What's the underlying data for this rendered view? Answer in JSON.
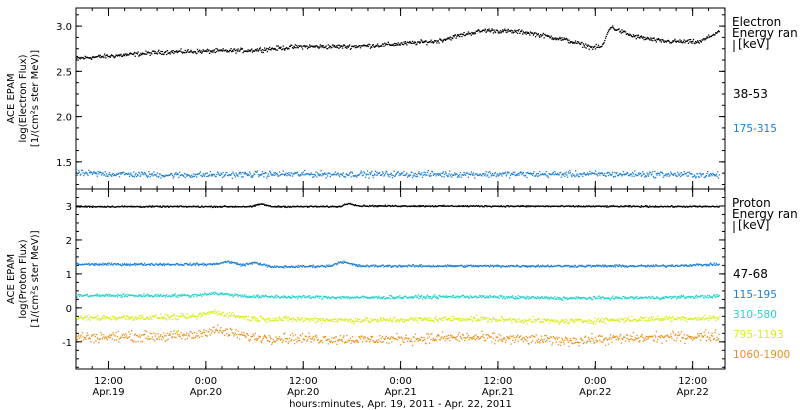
{
  "chart_data": [
    {
      "type": "scatter",
      "panel": "electron",
      "ylabel": [
        "ACE EPAM",
        "log(Electron Flux)",
        "[1/(cm²s ster MeV)]"
      ],
      "ylim": [
        1.2,
        3.2
      ],
      "yticks": [
        1.5,
        2.0,
        2.5,
        3.0
      ],
      "ytick_labels": [
        "1.5",
        "2.0",
        "2.5",
        "3.0"
      ],
      "legend_title": [
        "Electron",
        "Energy ran",
        "[keV]"
      ],
      "series": [
        {
          "name": "38-53",
          "color": "#000000",
          "noise": 0.035,
          "profile": [
            [
              0,
              2.65
            ],
            [
              0.2,
              2.68
            ],
            [
              0.45,
              2.72
            ],
            [
              0.7,
              2.73
            ],
            [
              0.9,
              2.74
            ],
            [
              1.15,
              2.78
            ],
            [
              1.4,
              2.78
            ],
            [
              1.6,
              2.8
            ],
            [
              1.85,
              2.84
            ],
            [
              2.0,
              2.92
            ],
            [
              2.1,
              2.96
            ],
            [
              2.3,
              2.94
            ],
            [
              2.5,
              2.86
            ],
            [
              2.65,
              2.77
            ],
            [
              2.7,
              2.78
            ],
            [
              2.74,
              3.0
            ],
            [
              2.85,
              2.9
            ],
            [
              3.0,
              2.84
            ],
            [
              3.2,
              2.83
            ],
            [
              3.3,
              2.95
            ]
          ]
        },
        {
          "name": "175-315",
          "color": "#1a7fd6",
          "noise": 0.05,
          "profile": [
            [
              0,
              1.38
            ],
            [
              0.5,
              1.36
            ],
            [
              1.0,
              1.37
            ],
            [
              1.5,
              1.37
            ],
            [
              2.0,
              1.37
            ],
            [
              2.5,
              1.37
            ],
            [
              3.0,
              1.37
            ],
            [
              3.3,
              1.36
            ]
          ]
        }
      ]
    },
    {
      "type": "scatter",
      "panel": "proton",
      "ylabel": [
        "ACE EPAM",
        "log(Proton Flux)",
        "[1/(cm²s ster MeV)]"
      ],
      "ylim": [
        -1.8,
        3.5
      ],
      "yticks": [
        -1,
        0,
        1,
        2,
        3
      ],
      "ytick_labels": [
        "-1",
        "0",
        "1",
        "2",
        "3"
      ],
      "legend_title": [
        "Proton",
        "Energy ran",
        "[keV]"
      ],
      "series": [
        {
          "name": "47-68",
          "color": "#000000",
          "noise": 0.03,
          "profile": [
            [
              0,
              3.0
            ],
            [
              0.9,
              3.0
            ],
            [
              0.95,
              3.08
            ],
            [
              1.0,
              3.0
            ],
            [
              1.35,
              3.0
            ],
            [
              1.4,
              3.1
            ],
            [
              1.45,
              3.02
            ],
            [
              3.3,
              3.0
            ]
          ]
        },
        {
          "name": "115-195",
          "color": "#1a7fd6",
          "noise": 0.05,
          "profile": [
            [
              0,
              1.3
            ],
            [
              0.7,
              1.3
            ],
            [
              0.78,
              1.38
            ],
            [
              0.85,
              1.28
            ],
            [
              0.92,
              1.35
            ],
            [
              1.0,
              1.22
            ],
            [
              1.3,
              1.25
            ],
            [
              1.36,
              1.38
            ],
            [
              1.45,
              1.25
            ],
            [
              3.0,
              1.25
            ],
            [
              3.3,
              1.3
            ]
          ]
        },
        {
          "name": "310-580",
          "color": "#22d3c8",
          "noise": 0.07,
          "profile": [
            [
              0,
              0.38
            ],
            [
              0.6,
              0.38
            ],
            [
              0.7,
              0.45
            ],
            [
              0.9,
              0.35
            ],
            [
              1.5,
              0.32
            ],
            [
              2.0,
              0.35
            ],
            [
              2.5,
              0.3
            ],
            [
              3.0,
              0.32
            ],
            [
              3.3,
              0.36
            ]
          ]
        },
        {
          "name": "795-1193",
          "color": "#d6ee18",
          "noise": 0.12,
          "profile": [
            [
              0,
              -0.28
            ],
            [
              0.6,
              -0.25
            ],
            [
              0.7,
              -0.1
            ],
            [
              0.9,
              -0.3
            ],
            [
              1.5,
              -0.35
            ],
            [
              2.0,
              -0.3
            ],
            [
              2.5,
              -0.38
            ],
            [
              3.0,
              -0.3
            ],
            [
              3.3,
              -0.28
            ]
          ]
        },
        {
          "name": "1060-1900",
          "color": "#e8901c",
          "noise": 0.22,
          "profile": [
            [
              0,
              -0.85
            ],
            [
              0.6,
              -0.8
            ],
            [
              0.7,
              -0.62
            ],
            [
              0.9,
              -0.85
            ],
            [
              1.5,
              -0.92
            ],
            [
              2.0,
              -0.85
            ],
            [
              2.5,
              -0.95
            ],
            [
              3.0,
              -0.85
            ],
            [
              3.3,
              -0.8
            ]
          ]
        }
      ]
    }
  ],
  "x_axis": {
    "xlabel": "hours:minutes, Apr. 19, 2011 - Apr. 22, 2011",
    "xlim": [
      0,
      3.333
    ],
    "ticks": [
      {
        "x": 0.167,
        "time": "12:00",
        "date": "Apr.19"
      },
      {
        "x": 0.667,
        "time": "0:00",
        "date": "Apr.20"
      },
      {
        "x": 1.167,
        "time": "12:00",
        "date": "Apr.20"
      },
      {
        "x": 1.667,
        "time": "0:00",
        "date": "Apr.21"
      },
      {
        "x": 2.167,
        "time": "12:00",
        "date": "Apr.21"
      },
      {
        "x": 2.667,
        "time": "0:00",
        "date": "Apr.22"
      },
      {
        "x": 3.167,
        "time": "12:00",
        "date": "Apr.22"
      }
    ],
    "minor_step": 0.0833,
    "data_end": 3.3
  }
}
